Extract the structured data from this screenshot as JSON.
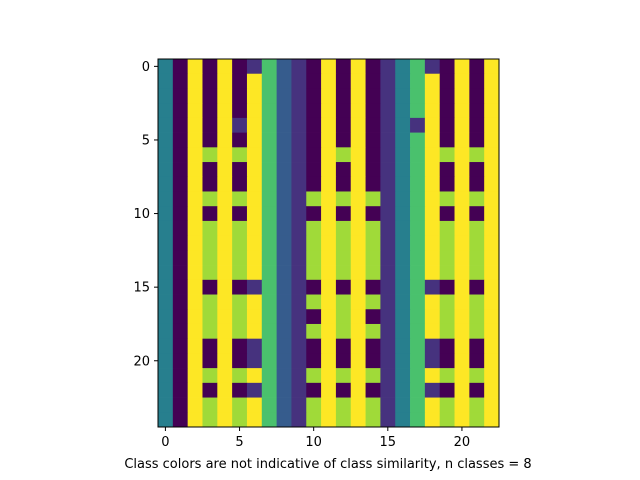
{
  "chart_data": {
    "type": "heatmap",
    "xlabel": "Class colors are not indicative of class similarity, n classes = 8",
    "ylabel": "",
    "title": "",
    "xlim": [
      -0.5,
      22.5
    ],
    "ylim": [
      24.5,
      -0.5
    ],
    "x_ticks": [
      0,
      5,
      10,
      15,
      20
    ],
    "y_ticks": [
      0,
      5,
      10,
      15,
      20
    ],
    "x_tick_labels": [
      "0",
      "5",
      "10",
      "15",
      "20"
    ],
    "y_tick_labels": [
      "0",
      "5",
      "10",
      "15",
      "20"
    ],
    "grid": false,
    "colormap": "viridis",
    "n_classes": 8,
    "class_colors": [
      "#440154",
      "#46327e",
      "#365c8d",
      "#277f8e",
      "#1fa187",
      "#4ac16d",
      "#a0da39",
      "#fde725"
    ],
    "base_columns": [
      3,
      0,
      7,
      0,
      7,
      0,
      7,
      5,
      2,
      1,
      0,
      7,
      0,
      7,
      0,
      1,
      3,
      5,
      7,
      0,
      7,
      0,
      7
    ],
    "overrides": [
      {
        "row": 0,
        "col": 6,
        "value": 1
      },
      {
        "row": 0,
        "col": 18,
        "value": 1
      },
      {
        "row": 1,
        "col": 6,
        "value": 7
      },
      {
        "row": 1,
        "col": 18,
        "value": 7
      },
      {
        "row": 2,
        "col": 6,
        "value": 7
      },
      {
        "row": 2,
        "col": 18,
        "value": 7
      },
      {
        "row": 3,
        "col": 6,
        "value": 7
      },
      {
        "row": 3,
        "col": 18,
        "value": 7
      },
      {
        "row": 4,
        "col": 5,
        "value": 1
      },
      {
        "row": 4,
        "col": 6,
        "value": 7
      },
      {
        "row": 4,
        "col": 17,
        "value": 1
      },
      {
        "row": 4,
        "col": 18,
        "value": 7
      },
      {
        "row": 6,
        "col": 3,
        "value": 6
      },
      {
        "row": 6,
        "col": 5,
        "value": 6
      },
      {
        "row": 6,
        "col": 12,
        "value": 6
      },
      {
        "row": 6,
        "col": 19,
        "value": 6
      },
      {
        "row": 6,
        "col": 21,
        "value": 6
      },
      {
        "row": 9,
        "col": 3,
        "value": 6
      },
      {
        "row": 9,
        "col": 5,
        "value": 6
      },
      {
        "row": 9,
        "col": 10,
        "value": 6
      },
      {
        "row": 9,
        "col": 12,
        "value": 6
      },
      {
        "row": 9,
        "col": 14,
        "value": 6
      },
      {
        "row": 9,
        "col": 19,
        "value": 6
      },
      {
        "row": 9,
        "col": 21,
        "value": 6
      },
      {
        "row": 11,
        "col": 3,
        "value": 6
      },
      {
        "row": 11,
        "col": 5,
        "value": 6
      },
      {
        "row": 11,
        "col": 10,
        "value": 6
      },
      {
        "row": 11,
        "col": 12,
        "value": 6
      },
      {
        "row": 11,
        "col": 14,
        "value": 6
      },
      {
        "row": 11,
        "col": 19,
        "value": 6
      },
      {
        "row": 11,
        "col": 21,
        "value": 6
      },
      {
        "row": 12,
        "col": 3,
        "value": 6
      },
      {
        "row": 12,
        "col": 5,
        "value": 6
      },
      {
        "row": 12,
        "col": 10,
        "value": 6
      },
      {
        "row": 12,
        "col": 12,
        "value": 6
      },
      {
        "row": 12,
        "col": 14,
        "value": 6
      },
      {
        "row": 12,
        "col": 19,
        "value": 6
      },
      {
        "row": 12,
        "col": 21,
        "value": 6
      },
      {
        "row": 13,
        "col": 3,
        "value": 6
      },
      {
        "row": 13,
        "col": 5,
        "value": 6
      },
      {
        "row": 13,
        "col": 10,
        "value": 6
      },
      {
        "row": 13,
        "col": 12,
        "value": 6
      },
      {
        "row": 13,
        "col": 14,
        "value": 6
      },
      {
        "row": 13,
        "col": 19,
        "value": 6
      },
      {
        "row": 13,
        "col": 21,
        "value": 6
      },
      {
        "row": 14,
        "col": 3,
        "value": 6
      },
      {
        "row": 14,
        "col": 5,
        "value": 6
      },
      {
        "row": 14,
        "col": 10,
        "value": 6
      },
      {
        "row": 14,
        "col": 12,
        "value": 6
      },
      {
        "row": 14,
        "col": 14,
        "value": 6
      },
      {
        "row": 14,
        "col": 19,
        "value": 6
      },
      {
        "row": 14,
        "col": 21,
        "value": 6
      },
      {
        "row": 15,
        "col": 6,
        "value": 1
      },
      {
        "row": 15,
        "col": 18,
        "value": 1
      },
      {
        "row": 16,
        "col": 3,
        "value": 6
      },
      {
        "row": 16,
        "col": 5,
        "value": 6
      },
      {
        "row": 16,
        "col": 10,
        "value": 6
      },
      {
        "row": 16,
        "col": 12,
        "value": 6
      },
      {
        "row": 16,
        "col": 14,
        "value": 6
      },
      {
        "row": 16,
        "col": 19,
        "value": 6
      },
      {
        "row": 16,
        "col": 21,
        "value": 6
      },
      {
        "row": 17,
        "col": 3,
        "value": 6
      },
      {
        "row": 17,
        "col": 5,
        "value": 6
      },
      {
        "row": 17,
        "col": 12,
        "value": 6
      },
      {
        "row": 17,
        "col": 19,
        "value": 6
      },
      {
        "row": 17,
        "col": 21,
        "value": 6
      },
      {
        "row": 18,
        "col": 3,
        "value": 6
      },
      {
        "row": 18,
        "col": 5,
        "value": 6
      },
      {
        "row": 18,
        "col": 10,
        "value": 6
      },
      {
        "row": 18,
        "col": 12,
        "value": 6
      },
      {
        "row": 18,
        "col": 14,
        "value": 6
      },
      {
        "row": 18,
        "col": 19,
        "value": 6
      },
      {
        "row": 18,
        "col": 21,
        "value": 6
      },
      {
        "row": 19,
        "col": 6,
        "value": 1
      },
      {
        "row": 19,
        "col": 18,
        "value": 1
      },
      {
        "row": 20,
        "col": 6,
        "value": 1
      },
      {
        "row": 20,
        "col": 18,
        "value": 1
      },
      {
        "row": 21,
        "col": 3,
        "value": 6
      },
      {
        "row": 21,
        "col": 5,
        "value": 6
      },
      {
        "row": 21,
        "col": 10,
        "value": 6
      },
      {
        "row": 21,
        "col": 12,
        "value": 6
      },
      {
        "row": 21,
        "col": 14,
        "value": 6
      },
      {
        "row": 21,
        "col": 19,
        "value": 6
      },
      {
        "row": 21,
        "col": 21,
        "value": 6
      },
      {
        "row": 22,
        "col": 6,
        "value": 1
      },
      {
        "row": 22,
        "col": 18,
        "value": 1
      },
      {
        "row": 23,
        "col": 3,
        "value": 6
      },
      {
        "row": 23,
        "col": 5,
        "value": 6
      },
      {
        "row": 23,
        "col": 10,
        "value": 6
      },
      {
        "row": 23,
        "col": 12,
        "value": 6
      },
      {
        "row": 23,
        "col": 14,
        "value": 6
      },
      {
        "row": 23,
        "col": 19,
        "value": 6
      },
      {
        "row": 23,
        "col": 21,
        "value": 6
      },
      {
        "row": 24,
        "col": 3,
        "value": 6
      },
      {
        "row": 24,
        "col": 5,
        "value": 6
      },
      {
        "row": 24,
        "col": 10,
        "value": 6
      },
      {
        "row": 24,
        "col": 12,
        "value": 6
      },
      {
        "row": 24,
        "col": 14,
        "value": 6
      },
      {
        "row": 24,
        "col": 19,
        "value": 6
      },
      {
        "row": 24,
        "col": 21,
        "value": 6
      }
    ]
  }
}
